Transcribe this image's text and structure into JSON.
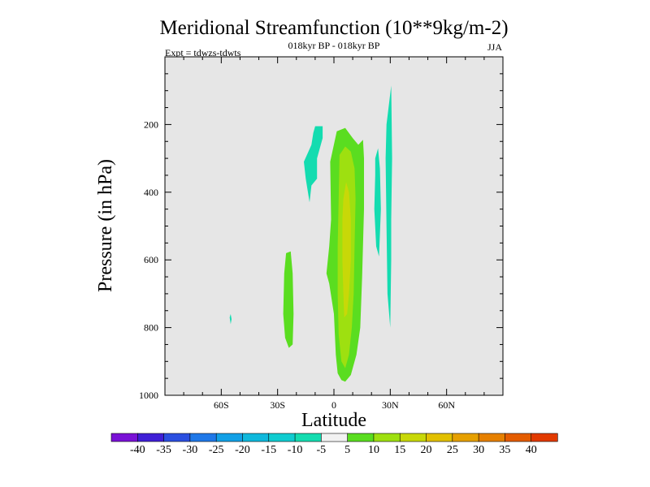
{
  "chart_data": {
    "type": "contour",
    "title": "Meridional Streamfunction (10**9kg/m-2)",
    "subtitle": "018kyr BP - 018kyr BP",
    "season": "JJA",
    "experiment": "Expt = tdwzs-tdwts",
    "xlabel": "Latitude",
    "ylabel": "Pressure (in hPa)",
    "xlim": [
      -90,
      90
    ],
    "ylim": [
      1000,
      0
    ],
    "x_ticks": [
      {
        "value": -60,
        "label": "60S"
      },
      {
        "value": -30,
        "label": "30S"
      },
      {
        "value": 0,
        "label": "0"
      },
      {
        "value": 30,
        "label": "30N"
      },
      {
        "value": 60,
        "label": "60N"
      }
    ],
    "y_ticks": [
      {
        "value": 200,
        "label": "200"
      },
      {
        "value": 400,
        "label": "400"
      },
      {
        "value": 600,
        "label": "600"
      },
      {
        "value": 800,
        "label": "800"
      },
      {
        "value": 1000,
        "label": "1000"
      }
    ],
    "background_color": "#e6e6e6",
    "colorbar": {
      "colors": [
        "#7a12d6",
        "#3f1fd6",
        "#2b4fe0",
        "#1f78e8",
        "#12a0e6",
        "#0fb8dc",
        "#10ccd0",
        "#14dcb0",
        "#f2f2f2",
        "#5add20",
        "#9ee010",
        "#c8d808",
        "#e2c000",
        "#e6a000",
        "#e68000",
        "#e45c00",
        "#e23a00"
      ],
      "labels": [
        "-40",
        "-35",
        "-30",
        "-25",
        "-20",
        "-15",
        "-10",
        "-5",
        "5",
        "10",
        "15",
        "20",
        "25",
        "30",
        "35",
        "40"
      ]
    },
    "features": [
      {
        "level": "-5",
        "color": "#14dcb0",
        "points": [
          [
            -55.5,
            770
          ],
          [
            -55,
            760
          ],
          [
            -54.5,
            775
          ],
          [
            -55,
            790
          ]
        ]
      },
      {
        "level": "-5",
        "color": "#14dcb0",
        "points": [
          [
            -10,
            205
          ],
          [
            -6,
            205
          ],
          [
            -6,
            240
          ],
          [
            -9,
            300
          ],
          [
            -9,
            360
          ],
          [
            -12,
            380
          ],
          [
            -13,
            430
          ],
          [
            -15,
            360
          ],
          [
            -16,
            310
          ],
          [
            -12,
            260
          ],
          [
            -11,
            225
          ]
        ]
      },
      {
        "level": "-5",
        "color": "#14dcb0",
        "points": [
          [
            22,
            300
          ],
          [
            23.5,
            270
          ],
          [
            24.5,
            330
          ],
          [
            25,
            450
          ],
          [
            24,
            590
          ],
          [
            22.5,
            560
          ],
          [
            21.5,
            450
          ],
          [
            22,
            350
          ]
        ]
      },
      {
        "level": "-5",
        "color": "#14dcb0",
        "points": [
          [
            28,
            200
          ],
          [
            30.5,
            85
          ],
          [
            31,
            300
          ],
          [
            30.5,
            480
          ],
          [
            30.5,
            600
          ],
          [
            30,
            800
          ],
          [
            28.5,
            700
          ],
          [
            28,
            500
          ],
          [
            27.5,
            300
          ]
        ]
      },
      {
        "level": "5",
        "color": "#5add20",
        "points": [
          [
            -25.5,
            580
          ],
          [
            -23,
            575
          ],
          [
            -22,
            640
          ],
          [
            -21.5,
            760
          ],
          [
            -22,
            850
          ],
          [
            -24,
            860
          ],
          [
            -26,
            830
          ],
          [
            -27,
            760
          ],
          [
            -26.5,
            640
          ]
        ]
      },
      {
        "level": "5",
        "color": "#5add20",
        "points": [
          [
            -2,
            310
          ],
          [
            1.5,
            220
          ],
          [
            6,
            210
          ],
          [
            10,
            240
          ],
          [
            13,
            260
          ],
          [
            15.5,
            245
          ],
          [
            16,
            300
          ],
          [
            16,
            450
          ],
          [
            15,
            650
          ],
          [
            14,
            800
          ],
          [
            12,
            880
          ],
          [
            9,
            940
          ],
          [
            6,
            960
          ],
          [
            4,
            955
          ],
          [
            2,
            935
          ],
          [
            1,
            880
          ],
          [
            0,
            760
          ],
          [
            -2.5,
            670
          ],
          [
            -4,
            640
          ],
          [
            -2.5,
            560
          ],
          [
            -1.5,
            480
          ]
        ]
      },
      {
        "level": "10",
        "color": "#9ee010",
        "points": [
          [
            3,
            290
          ],
          [
            6,
            265
          ],
          [
            9,
            280
          ],
          [
            11,
            330
          ],
          [
            11.5,
            420
          ],
          [
            11,
            560
          ],
          [
            10.5,
            700
          ],
          [
            9.5,
            800
          ],
          [
            8,
            880
          ],
          [
            6,
            920
          ],
          [
            4,
            900
          ],
          [
            2.5,
            820
          ],
          [
            2,
            700
          ],
          [
            2,
            560
          ],
          [
            2.5,
            420
          ]
        ]
      },
      {
        "level": "15",
        "color": "#c8d808",
        "points": [
          [
            5,
            420
          ],
          [
            6.5,
            370
          ],
          [
            8,
            400
          ],
          [
            9,
            480
          ],
          [
            9,
            600
          ],
          [
            8,
            700
          ],
          [
            7,
            760
          ],
          [
            5.5,
            770
          ],
          [
            5,
            700
          ],
          [
            4.5,
            600
          ],
          [
            4.5,
            480
          ]
        ]
      }
    ]
  }
}
